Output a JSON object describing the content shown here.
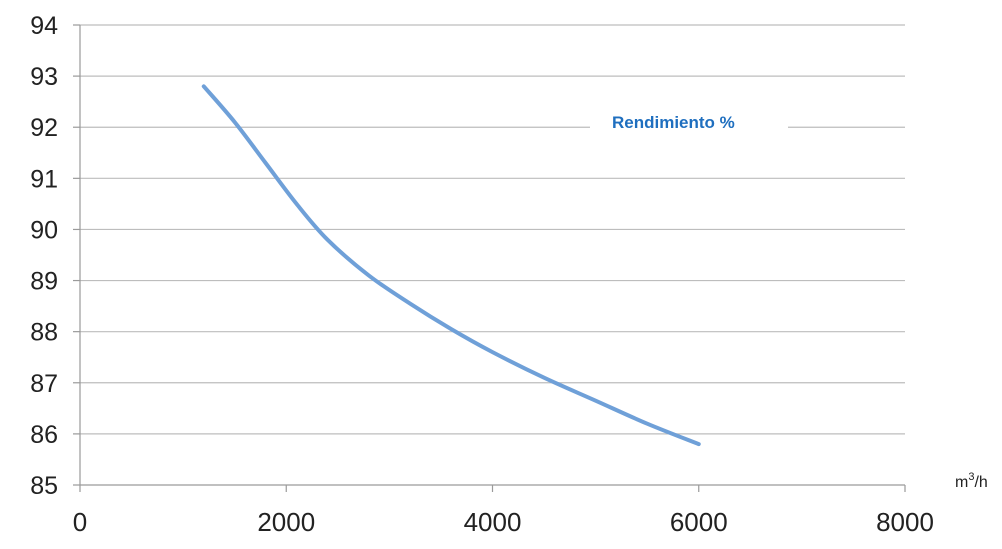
{
  "chart_data": {
    "type": "line",
    "title": "",
    "xlabel": "",
    "ylabel": "",
    "x_unit_base": "m",
    "x_unit_sup": "3",
    "x_unit_suffix": "/h",
    "xlim": [
      0,
      8000
    ],
    "ylim": [
      85,
      94
    ],
    "x_ticks": [
      "0",
      "2000",
      "4000",
      "6000",
      "8000"
    ],
    "y_ticks": [
      "85",
      "86",
      "87",
      "88",
      "89",
      "90",
      "91",
      "92",
      "93",
      "94"
    ],
    "grid": "horizontal",
    "legend_position": "top-right",
    "series": [
      {
        "name": "Rendimiento %",
        "color": "#6fa0d8",
        "x": [
          1200,
          1500,
          1800,
          2100,
          2400,
          2800,
          3200,
          3600,
          4000,
          4500,
          5000,
          5500,
          6000
        ],
        "y": [
          92.8,
          92.1,
          91.3,
          90.5,
          89.8,
          89.1,
          88.55,
          88.05,
          87.6,
          87.1,
          86.65,
          86.2,
          85.8
        ]
      }
    ],
    "legend_text_color": "#1f6fbf"
  }
}
